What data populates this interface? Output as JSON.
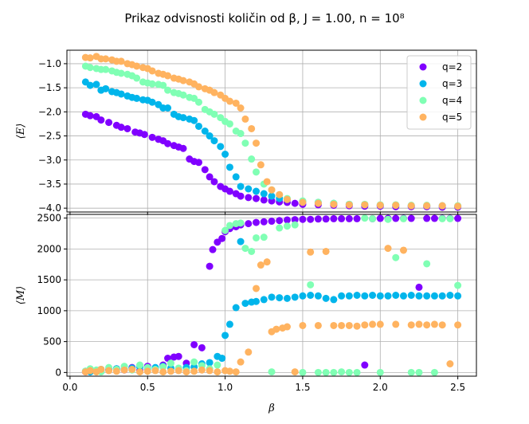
{
  "figure": {
    "title": "Prikaz odvisnosti količin od β, J = 1.00, n = 10⁸"
  },
  "chart_data": [
    {
      "type": "scatter",
      "ylabel": "⟨E⟩",
      "xlim": [
        -0.02,
        2.62
      ],
      "ylim": [
        -4.08,
        -0.72
      ],
      "grid": true,
      "yticks": [
        -1.0,
        -1.5,
        -2.0,
        -2.5,
        -3.0,
        -3.5,
        -4.0
      ],
      "ytick_labels": [
        "−1.0",
        "−1.5",
        "−2.0",
        "−2.5",
        "−3.0",
        "−3.5",
        "−4.0"
      ],
      "legend": {
        "position": "top-right",
        "entries": [
          "q=2",
          "q=3",
          "q=4",
          "q=5"
        ]
      },
      "series": [
        {
          "name": "q=2",
          "color": "#8000ff",
          "x": [
            0.1,
            0.13,
            0.17,
            0.2,
            0.25,
            0.3,
            0.33,
            0.37,
            0.42,
            0.45,
            0.48,
            0.53,
            0.57,
            0.6,
            0.63,
            0.67,
            0.7,
            0.73,
            0.77,
            0.8,
            0.83,
            0.87,
            0.9,
            0.93,
            0.97,
            1.0,
            1.03,
            1.07,
            1.1,
            1.15,
            1.2,
            1.25,
            1.3,
            1.35,
            1.4,
            1.45,
            1.5,
            1.6,
            1.7,
            1.8,
            1.9,
            2.0,
            2.1,
            2.2,
            2.3,
            2.4,
            2.5
          ],
          "y": [
            -2.05,
            -2.08,
            -2.1,
            -2.17,
            -2.22,
            -2.28,
            -2.32,
            -2.35,
            -2.42,
            -2.44,
            -2.47,
            -2.53,
            -2.57,
            -2.6,
            -2.66,
            -2.7,
            -2.73,
            -2.76,
            -2.98,
            -3.03,
            -3.05,
            -3.2,
            -3.35,
            -3.45,
            -3.55,
            -3.6,
            -3.65,
            -3.7,
            -3.75,
            -3.78,
            -3.8,
            -3.83,
            -3.85,
            -3.87,
            -3.88,
            -3.9,
            -3.92,
            -3.93,
            -3.94,
            -3.95,
            -3.96,
            -3.96,
            -3.97,
            -3.97,
            -3.97,
            -3.98,
            -3.98
          ]
        },
        {
          "name": "q=3",
          "color": "#00b5eb",
          "x": [
            0.1,
            0.13,
            0.17,
            0.2,
            0.23,
            0.27,
            0.3,
            0.33,
            0.37,
            0.4,
            0.43,
            0.47,
            0.5,
            0.53,
            0.57,
            0.6,
            0.63,
            0.67,
            0.7,
            0.73,
            0.77,
            0.8,
            0.83,
            0.87,
            0.9,
            0.93,
            0.97,
            1.0,
            1.03,
            1.07,
            1.1,
            1.15,
            1.2,
            1.25,
            1.3,
            1.35,
            1.4,
            1.5,
            1.6,
            1.7,
            1.8,
            1.9,
            2.0,
            2.1,
            2.2,
            2.3,
            2.4,
            2.5
          ],
          "y": [
            -1.38,
            -1.45,
            -1.43,
            -1.55,
            -1.52,
            -1.58,
            -1.6,
            -1.63,
            -1.67,
            -1.7,
            -1.72,
            -1.75,
            -1.76,
            -1.8,
            -1.85,
            -1.92,
            -1.92,
            -2.05,
            -2.1,
            -2.12,
            -2.15,
            -2.18,
            -2.3,
            -2.4,
            -2.5,
            -2.6,
            -2.72,
            -2.88,
            -3.15,
            -3.35,
            -3.55,
            -3.6,
            -3.65,
            -3.7,
            -3.75,
            -3.8,
            -3.82,
            -3.86,
            -3.88,
            -3.9,
            -3.92,
            -3.93,
            -3.94,
            -3.94,
            -3.95,
            -3.95,
            -3.95,
            -3.96
          ]
        },
        {
          "name": "q=4",
          "color": "#80ffb4",
          "x": [
            0.1,
            0.13,
            0.17,
            0.2,
            0.23,
            0.27,
            0.3,
            0.33,
            0.37,
            0.4,
            0.43,
            0.47,
            0.5,
            0.53,
            0.57,
            0.6,
            0.63,
            0.67,
            0.7,
            0.73,
            0.77,
            0.8,
            0.83,
            0.87,
            0.9,
            0.93,
            0.97,
            1.0,
            1.03,
            1.07,
            1.1,
            1.13,
            1.17,
            1.2,
            1.25,
            1.3,
            1.35,
            1.4,
            1.5,
            1.6,
            1.7,
            1.8,
            1.9,
            2.0,
            2.1,
            2.2,
            2.3,
            2.4,
            2.5
          ],
          "y": [
            -1.05,
            -1.08,
            -1.1,
            -1.12,
            -1.12,
            -1.15,
            -1.18,
            -1.2,
            -1.22,
            -1.25,
            -1.3,
            -1.38,
            -1.4,
            -1.42,
            -1.43,
            -1.45,
            -1.55,
            -1.6,
            -1.62,
            -1.65,
            -1.7,
            -1.72,
            -1.8,
            -1.95,
            -2.0,
            -2.05,
            -2.12,
            -2.2,
            -2.25,
            -2.4,
            -2.45,
            -2.65,
            -2.98,
            -3.25,
            -3.5,
            -3.62,
            -3.72,
            -3.8,
            -3.85,
            -3.88,
            -3.9,
            -3.92,
            -3.92,
            -3.93,
            -3.93,
            -3.94,
            -3.94,
            -3.95,
            -3.95
          ]
        },
        {
          "name": "q=5",
          "color": "#ffb360",
          "x": [
            0.1,
            0.13,
            0.17,
            0.2,
            0.23,
            0.27,
            0.3,
            0.33,
            0.37,
            0.4,
            0.43,
            0.47,
            0.5,
            0.53,
            0.57,
            0.6,
            0.63,
            0.67,
            0.7,
            0.73,
            0.77,
            0.8,
            0.83,
            0.87,
            0.9,
            0.93,
            0.97,
            1.0,
            1.03,
            1.07,
            1.1,
            1.13,
            1.17,
            1.2,
            1.23,
            1.27,
            1.3,
            1.35,
            1.4,
            1.5,
            1.6,
            1.7,
            1.8,
            1.9,
            2.0,
            2.1,
            2.2,
            2.3,
            2.4,
            2.5
          ],
          "y": [
            -0.87,
            -0.88,
            -0.85,
            -0.9,
            -0.9,
            -0.92,
            -0.95,
            -0.95,
            -1.0,
            -1.02,
            -1.05,
            -1.08,
            -1.1,
            -1.15,
            -1.2,
            -1.22,
            -1.25,
            -1.3,
            -1.32,
            -1.35,
            -1.38,
            -1.42,
            -1.48,
            -1.52,
            -1.55,
            -1.6,
            -1.65,
            -1.72,
            -1.78,
            -1.82,
            -1.92,
            -2.15,
            -2.35,
            -2.65,
            -3.1,
            -3.45,
            -3.62,
            -3.72,
            -3.82,
            -3.88,
            -3.9,
            -3.92,
            -3.93,
            -3.93,
            -3.94,
            -3.94,
            -3.95,
            -3.95,
            -3.95,
            -3.96
          ]
        }
      ]
    },
    {
      "type": "scatter",
      "xlabel": "β",
      "ylabel": "⟨M⟩",
      "xlim": [
        -0.02,
        2.62
      ],
      "ylim": [
        -60,
        2560
      ],
      "grid": true,
      "xticks": [
        0.0,
        0.5,
        1.0,
        1.5,
        2.0,
        2.5
      ],
      "xtick_labels": [
        "0.0",
        "0.5",
        "1.0",
        "1.5",
        "2.0",
        "2.5"
      ],
      "yticks": [
        0,
        500,
        1000,
        1500,
        2000,
        2500
      ],
      "ytick_labels": [
        "0",
        "500",
        "1000",
        "1500",
        "2000",
        "2500"
      ],
      "series": [
        {
          "name": "q=2",
          "color": "#8000ff",
          "x": [
            0.1,
            0.13,
            0.17,
            0.2,
            0.25,
            0.3,
            0.35,
            0.4,
            0.45,
            0.5,
            0.55,
            0.6,
            0.63,
            0.67,
            0.7,
            0.75,
            0.8,
            0.85,
            0.9,
            0.92,
            0.95,
            0.98,
            1.0,
            1.03,
            1.07,
            1.1,
            1.15,
            1.2,
            1.25,
            1.3,
            1.35,
            1.4,
            1.45,
            1.5,
            1.55,
            1.6,
            1.65,
            1.7,
            1.75,
            1.8,
            1.85,
            1.9,
            1.95,
            2.0,
            2.05,
            2.1,
            2.15,
            2.2,
            2.25,
            2.3,
            2.35,
            2.4,
            2.45,
            2.5
          ],
          "y": [
            10,
            15,
            30,
            20,
            50,
            60,
            40,
            80,
            30,
            100,
            50,
            120,
            230,
            250,
            260,
            150,
            450,
            400,
            1720,
            1990,
            2110,
            2170,
            2280,
            2330,
            2360,
            2390,
            2410,
            2430,
            2440,
            2450,
            2460,
            2470,
            2475,
            2480,
            2480,
            2485,
            2485,
            2490,
            2490,
            2490,
            2490,
            120,
            2490,
            2495,
            2495,
            2495,
            2495,
            2495,
            1380,
            2495,
            2495,
            2495,
            2495,
            2495
          ]
        },
        {
          "name": "q=3",
          "color": "#00b5eb",
          "x": [
            0.1,
            0.13,
            0.17,
            0.2,
            0.25,
            0.3,
            0.35,
            0.4,
            0.45,
            0.5,
            0.55,
            0.6,
            0.65,
            0.7,
            0.75,
            0.8,
            0.85,
            0.9,
            0.95,
            0.98,
            1.0,
            1.03,
            1.07,
            1.1,
            1.13,
            1.17,
            1.2,
            1.25,
            1.3,
            1.35,
            1.4,
            1.45,
            1.5,
            1.55,
            1.6,
            1.65,
            1.7,
            1.75,
            1.8,
            1.85,
            1.9,
            1.95,
            2.0,
            2.05,
            2.1,
            2.15,
            2.2,
            2.25,
            2.3,
            2.35,
            2.4,
            2.45,
            2.5
          ],
          "y": [
            20,
            10,
            30,
            50,
            40,
            60,
            50,
            70,
            90,
            60,
            80,
            100,
            70,
            50,
            80,
            90,
            140,
            160,
            260,
            230,
            600,
            780,
            1050,
            2120,
            1120,
            1140,
            1150,
            1180,
            1220,
            1210,
            1200,
            1220,
            1240,
            1250,
            1240,
            1200,
            1180,
            1240,
            1240,
            1250,
            1240,
            1250,
            1240,
            1240,
            1250,
            1240,
            1250,
            1240,
            1240,
            1240,
            1240,
            1250,
            1240
          ]
        },
        {
          "name": "q=4",
          "color": "#80ffb4",
          "x": [
            0.1,
            0.13,
            0.17,
            0.2,
            0.25,
            0.3,
            0.35,
            0.4,
            0.45,
            0.5,
            0.55,
            0.6,
            0.65,
            0.7,
            0.75,
            0.8,
            0.85,
            0.9,
            0.95,
            1.0,
            1.03,
            1.07,
            1.1,
            1.13,
            1.17,
            1.2,
            1.25,
            1.3,
            1.35,
            1.4,
            1.45,
            1.5,
            1.55,
            1.6,
            1.65,
            1.7,
            1.75,
            1.8,
            1.85,
            1.9,
            1.95,
            2.0,
            2.05,
            2.1,
            2.15,
            2.2,
            2.25,
            2.3,
            2.35,
            2.4,
            2.45,
            2.5
          ],
          "y": [
            20,
            60,
            40,
            10,
            80,
            50,
            100,
            40,
            120,
            80,
            50,
            90,
            150,
            70,
            30,
            170,
            110,
            60,
            120,
            2300,
            2380,
            2410,
            2420,
            2010,
            1960,
            2180,
            2190,
            10,
            2340,
            2370,
            2390,
            0,
            1420,
            0,
            0,
            0,
            10,
            0,
            0,
            2500,
            2490,
            0,
            2480,
            1860,
            2490,
            0,
            0,
            1760,
            0,
            2490,
            2490,
            1410
          ]
        },
        {
          "name": "q=5",
          "color": "#ffb360",
          "x": [
            0.1,
            0.13,
            0.17,
            0.2,
            0.25,
            0.3,
            0.35,
            0.4,
            0.45,
            0.5,
            0.55,
            0.6,
            0.65,
            0.7,
            0.75,
            0.8,
            0.85,
            0.9,
            0.95,
            1.0,
            1.03,
            1.07,
            1.1,
            1.15,
            1.2,
            1.23,
            1.27,
            1.3,
            1.33,
            1.37,
            1.4,
            1.45,
            1.5,
            1.55,
            1.6,
            1.65,
            1.7,
            1.75,
            1.8,
            1.85,
            1.9,
            1.95,
            2.0,
            2.05,
            2.1,
            2.15,
            2.2,
            2.25,
            2.3,
            2.35,
            2.4,
            2.45,
            2.5
          ],
          "y": [
            10,
            30,
            10,
            50,
            30,
            20,
            40,
            50,
            10,
            20,
            30,
            10,
            20,
            30,
            10,
            20,
            40,
            30,
            10,
            30,
            20,
            10,
            170,
            330,
            1360,
            1740,
            1790,
            660,
            700,
            720,
            740,
            10,
            760,
            1950,
            760,
            1960,
            760,
            760,
            760,
            750,
            770,
            780,
            780,
            2010,
            780,
            1980,
            770,
            780,
            770,
            780,
            770,
            140,
            770
          ]
        }
      ]
    }
  ]
}
